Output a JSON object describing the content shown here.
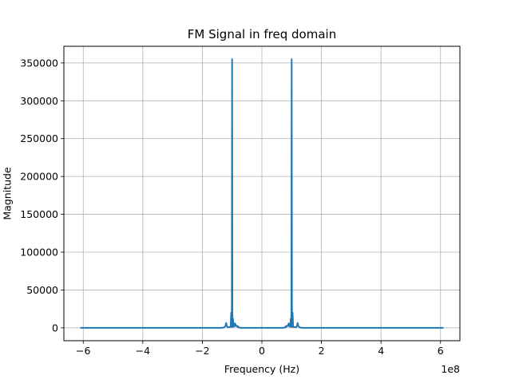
{
  "chart_data": {
    "type": "line",
    "title": "FM Signal in freq domain",
    "xlabel": "Frequency (Hz)",
    "ylabel": "Magnitude",
    "x_offset_label": "1e8",
    "xlim": [
      -6.65,
      6.65
    ],
    "ylim": [
      -17000,
      372000
    ],
    "x_ticks": [
      -6,
      -4,
      -2,
      0,
      2,
      4,
      6
    ],
    "x_tick_labels": [
      "−6",
      "−4",
      "−2",
      "0",
      "2",
      "4",
      "6"
    ],
    "y_ticks": [
      0,
      50000,
      100000,
      150000,
      200000,
      250000,
      300000,
      350000
    ],
    "y_tick_labels": [
      "0",
      "50000",
      "100000",
      "150000",
      "200000",
      "250000",
      "300000",
      "350000"
    ],
    "grid": true,
    "line_color": "#1f77b4",
    "series": [
      {
        "x": [
          -6.1,
          -1.35,
          -1.3,
          -1.25,
          -1.22,
          -1.2,
          -1.18,
          -1.15,
          -1.1,
          -1.08,
          -1.05,
          -1.03,
          -1.01,
          -1.0,
          -0.99,
          -0.97,
          -0.95,
          -0.92,
          -0.9,
          -0.88,
          -0.85,
          -0.82,
          -0.8,
          -0.78,
          -0.75,
          -0.7,
          0.7,
          0.75,
          0.78,
          0.8,
          0.82,
          0.85,
          0.88,
          0.9,
          0.92,
          0.95,
          0.97,
          0.99,
          1.0,
          1.01,
          1.03,
          1.05,
          1.08,
          1.1,
          1.15,
          1.18,
          1.2,
          1.22,
          1.25,
          1.3,
          1.35,
          6.1
        ],
        "y": [
          0,
          0,
          300,
          1200,
          2500,
          6500,
          2500,
          900,
          800,
          1000,
          1200,
          20000,
          1500,
          355000,
          1500,
          12000,
          1500,
          2500,
          6000,
          2500,
          3000,
          1200,
          2000,
          500,
          300,
          0,
          0,
          300,
          500,
          2000,
          1200,
          3000,
          2500,
          6000,
          2500,
          1500,
          12000,
          1500,
          355000,
          1500,
          20000,
          1200,
          1000,
          800,
          900,
          2500,
          6500,
          2500,
          1200,
          300,
          0,
          0
        ]
      }
    ]
  }
}
